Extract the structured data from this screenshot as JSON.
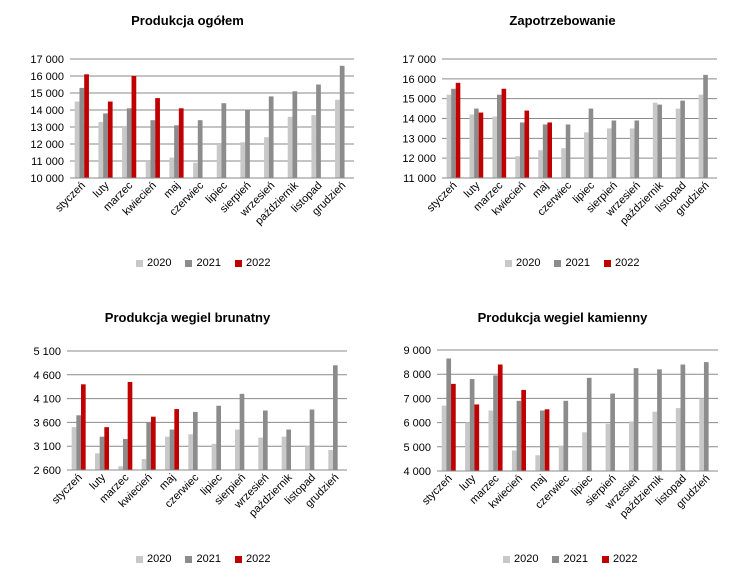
{
  "colors": {
    "s2020": "#c8c8c8",
    "s2021": "#8c8c8c",
    "s2022": "#c00000",
    "grid": "#8a8a8a",
    "axis": "#8a8a8a"
  },
  "chart_data": [
    {
      "type": "bar",
      "title": "Produkcja ogółem",
      "categories": [
        "styczeń",
        "luty",
        "marzec",
        "kwiecień",
        "maj",
        "czerwiec",
        "lipiec",
        "sierpień",
        "wrzesień",
        "październik",
        "listopad",
        "grudzień"
      ],
      "yticks": [
        "10 000",
        "11 000",
        "12 000",
        "13 000",
        "14 000",
        "15 000",
        "16 000",
        "17 000"
      ],
      "ylim": [
        10000,
        17000
      ],
      "series": [
        {
          "name": "2020",
          "values": [
            14500,
            13300,
            13000,
            11000,
            11200,
            10900,
            12000,
            12100,
            12400,
            13600,
            13700,
            14600
          ]
        },
        {
          "name": "2021",
          "values": [
            15300,
            13800,
            14100,
            13400,
            13100,
            13400,
            14400,
            14000,
            14800,
            15100,
            15500,
            16600
          ]
        },
        {
          "name": "2022",
          "values": [
            16100,
            14500,
            16000,
            14700,
            14100,
            null,
            null,
            null,
            null,
            null,
            null,
            null
          ]
        }
      ]
    },
    {
      "type": "bar",
      "title": "Zapotrzebowanie",
      "categories": [
        "styczeń",
        "luty",
        "marzec",
        "kwiecień",
        "maj",
        "czerwiec",
        "lipiec",
        "sierpień",
        "wrzesień",
        "październik",
        "listopad",
        "grudzień"
      ],
      "yticks": [
        "11 000",
        "12 000",
        "13 000",
        "14 000",
        "15 000",
        "16 000",
        "17 000"
      ],
      "ylim": [
        11000,
        17000
      ],
      "series": [
        {
          "name": "2020",
          "values": [
            15200,
            14200,
            14100,
            12100,
            12400,
            12500,
            13300,
            13500,
            13500,
            14800,
            14500,
            15200
          ]
        },
        {
          "name": "2021",
          "values": [
            15500,
            14500,
            15200,
            13800,
            13700,
            13700,
            14500,
            13900,
            13900,
            14700,
            14900,
            16200
          ]
        },
        {
          "name": "2022",
          "values": [
            15800,
            14300,
            15500,
            14400,
            13800,
            null,
            null,
            null,
            null,
            null,
            null,
            null
          ]
        }
      ]
    },
    {
      "type": "bar",
      "title": "Produkcja wegiel brunatny",
      "categories": [
        "styczeń",
        "luty",
        "marzec",
        "kwiecień",
        "maj",
        "czerwiec",
        "lipiec",
        "sierpień",
        "wrzesień",
        "październik",
        "listopad",
        "grudzień"
      ],
      "yticks": [
        "2 600",
        "3 100",
        "3 600",
        "4 100",
        "4 600",
        "5 100"
      ],
      "ylim": [
        2600,
        5100
      ],
      "series": [
        {
          "name": "2020",
          "values": [
            3500,
            2950,
            2680,
            2830,
            3300,
            3350,
            3150,
            3450,
            3280,
            3300,
            3100,
            3020
          ]
        },
        {
          "name": "2021",
          "values": [
            3750,
            3300,
            3250,
            3600,
            3450,
            3820,
            3950,
            4200,
            3850,
            3450,
            3870,
            4800
          ]
        },
        {
          "name": "2022",
          "values": [
            4400,
            3500,
            4450,
            3720,
            3880,
            null,
            null,
            null,
            null,
            null,
            null,
            null
          ]
        }
      ]
    },
    {
      "type": "bar",
      "title": "Produkcja wegiel kamienny",
      "categories": [
        "styczeń",
        "luty",
        "marzec",
        "kwiecień",
        "maj",
        "czerwiec",
        "lipiec",
        "sierpień",
        "wrzesień",
        "październik",
        "listopad",
        "grudzień"
      ],
      "yticks": [
        "4 000",
        "5 000",
        "6 000",
        "7 000",
        "8 000",
        "9 000"
      ],
      "ylim": [
        4000,
        9000
      ],
      "series": [
        {
          "name": "2020",
          "values": [
            6700,
            6000,
            6500,
            4850,
            4650,
            5050,
            5600,
            5950,
            6050,
            6450,
            6600,
            7000
          ]
        },
        {
          "name": "2021",
          "values": [
            8650,
            7800,
            7950,
            6900,
            6500,
            6900,
            7850,
            7200,
            8250,
            8200,
            8400,
            8500
          ]
        },
        {
          "name": "2022",
          "values": [
            7600,
            6750,
            8400,
            7350,
            6550,
            null,
            null,
            null,
            null,
            null,
            null,
            null
          ]
        }
      ]
    }
  ],
  "legend": [
    "2020",
    "2021",
    "2022"
  ]
}
